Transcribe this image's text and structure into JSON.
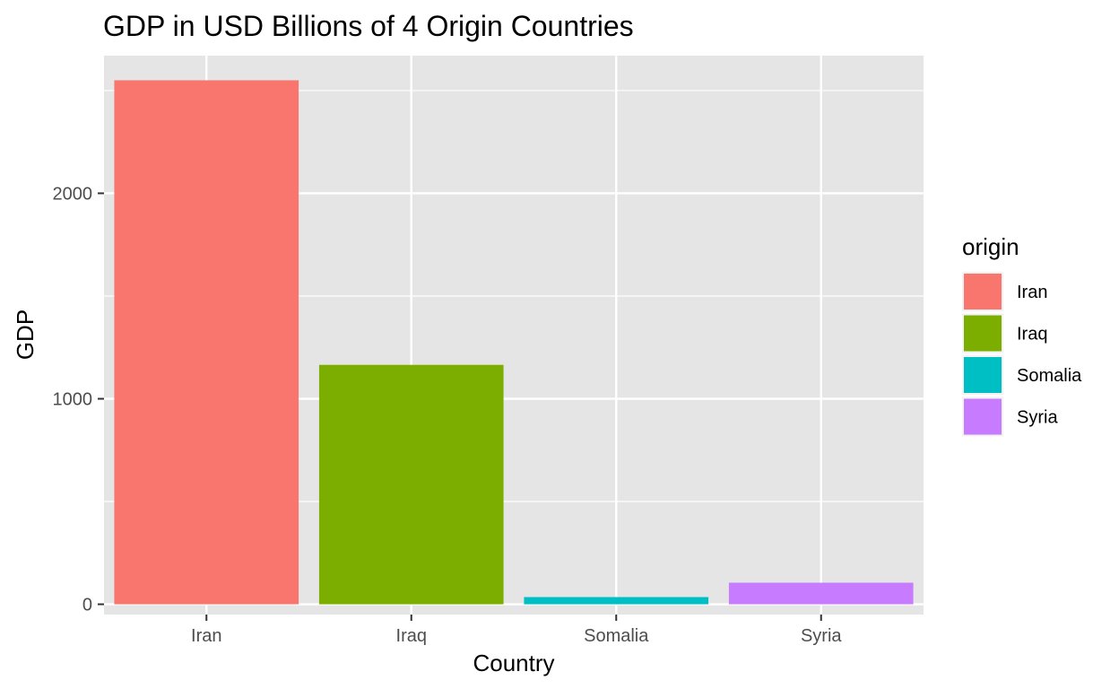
{
  "chart_data": {
    "type": "bar",
    "title": "GDP in USD Billions of 4 Origin Countries",
    "xlabel": "Country",
    "ylabel": "GDP",
    "categories": [
      "Iran",
      "Iraq",
      "Somalia",
      "Syria"
    ],
    "values": [
      2550,
      1165,
      35,
      105
    ],
    "ylim": [
      -50,
      2670
    ],
    "yticks": [
      0,
      1000,
      2000
    ],
    "ytick_labels": [
      "0",
      "1000",
      "2000"
    ],
    "grid": true,
    "legend": {
      "title": "origin",
      "placement": "right",
      "entries": [
        "Iran",
        "Iraq",
        "Somalia",
        "Syria"
      ]
    },
    "colors": {
      "Iran": "#F8766D",
      "Iraq": "#7CAE00",
      "Somalia": "#00BFC4",
      "Syria": "#C77CFF",
      "panel": "#E5E5E5",
      "gridline": "#FFFFFF"
    }
  }
}
